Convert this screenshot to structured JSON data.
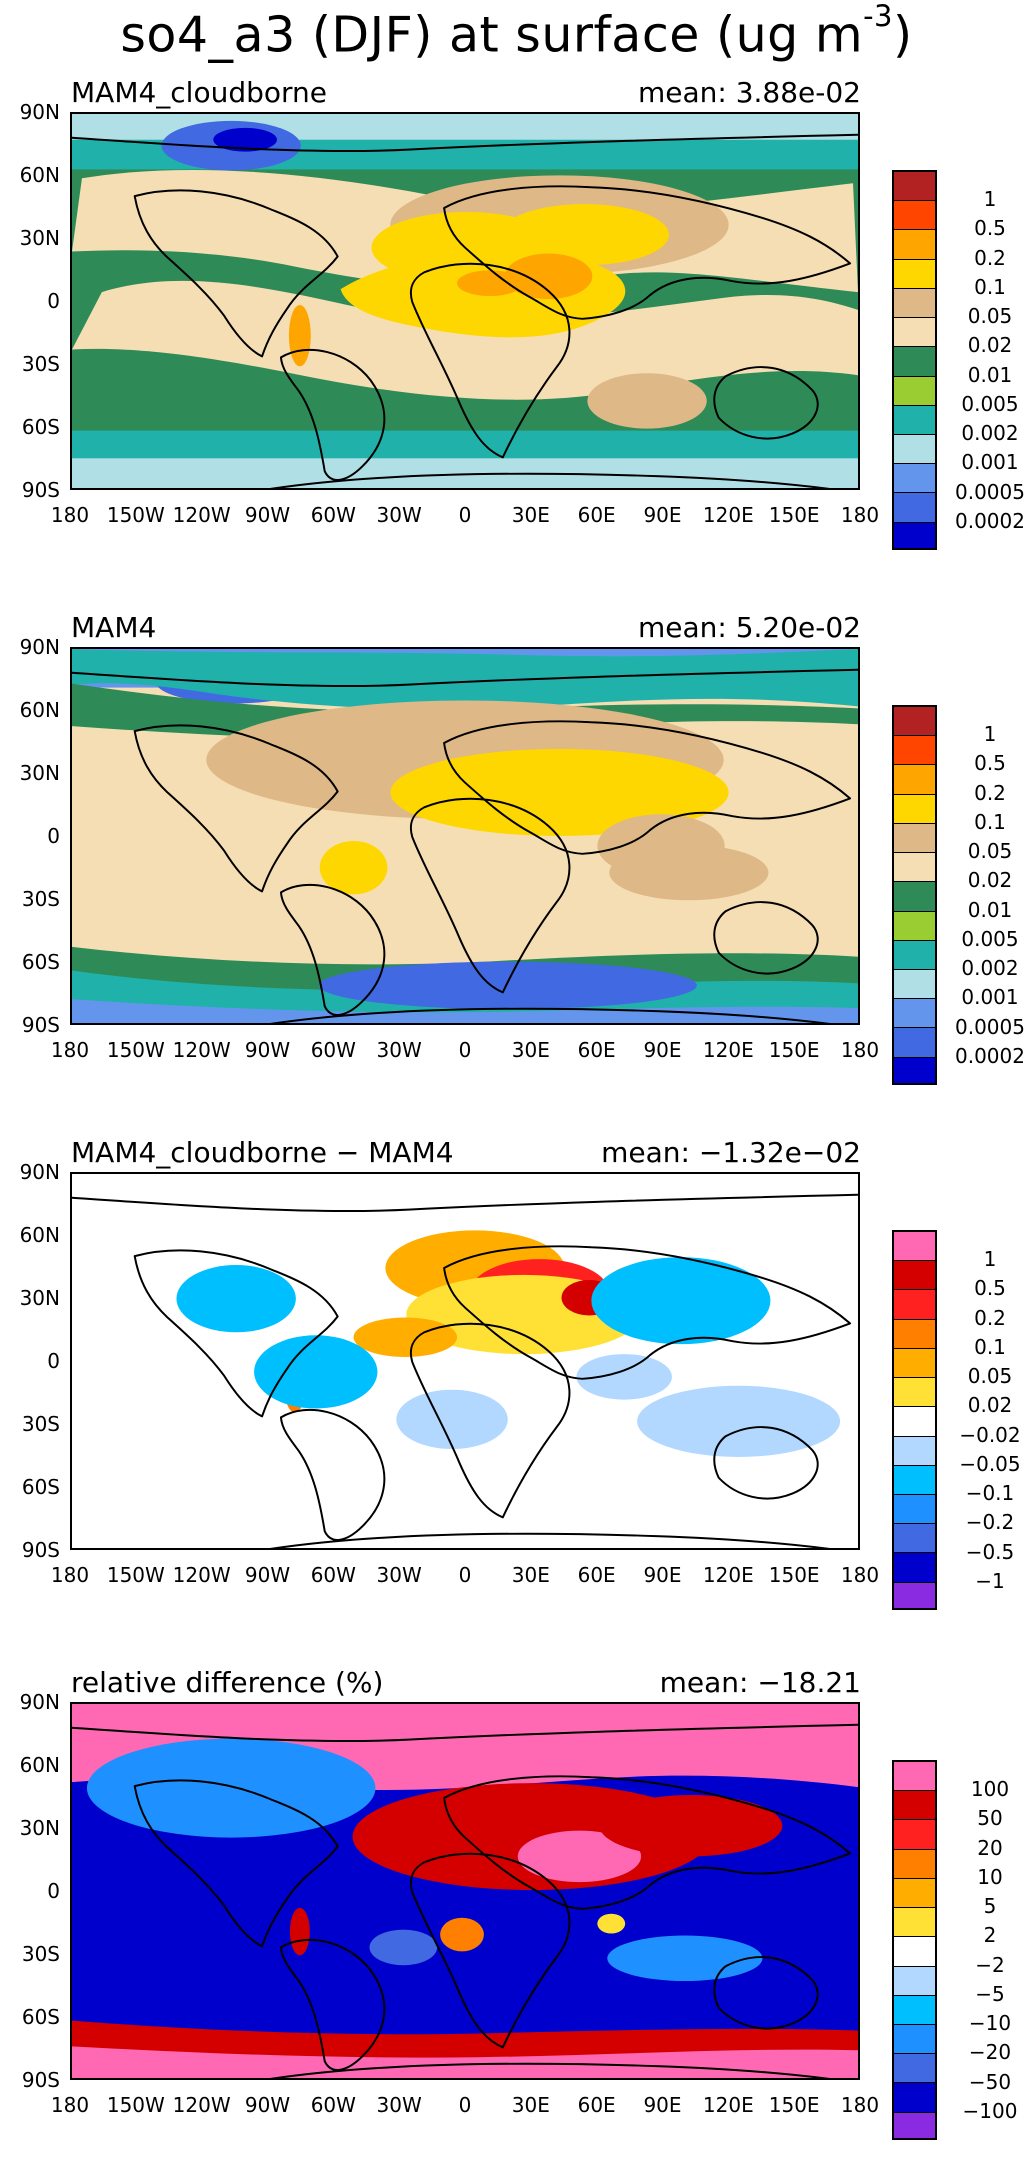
{
  "page": {
    "title_prefix": "so4_a3 (DJF) at surface (ug m",
    "title_superscript": "-3",
    "title_suffix": ")"
  },
  "chart_data": [
    {
      "type": "map",
      "title": "MAM4_cloudborne",
      "mean": "mean: 3.88e-02",
      "latitude_ticks": [
        "90N",
        "60N",
        "30N",
        "0",
        "30S",
        "60S",
        "90S"
      ],
      "longitude_ticks": [
        "180",
        "150W",
        "120W",
        "90W",
        "60W",
        "30W",
        "0",
        "30E",
        "60E",
        "90E",
        "120E",
        "150E",
        "180"
      ],
      "colorbar": [
        "1",
        "0.5",
        "0.2",
        "0.1",
        "0.05",
        "0.02",
        "0.01",
        "0.005",
        "0.002",
        "0.001",
        "0.0005",
        "0.0002"
      ],
      "colors": [
        "#b22222",
        "#ff4500",
        "#ffa500",
        "#ffd700",
        "#deb887",
        "#f5deb3",
        "#2e8b57",
        "#9acd32",
        "#20b2aa",
        "#b0e0e6",
        "#6495ed",
        "#4169e1",
        "#0000cd"
      ]
    },
    {
      "type": "map",
      "title": "MAM4",
      "mean": "mean: 5.20e-02",
      "latitude_ticks": [
        "90N",
        "60N",
        "30N",
        "0",
        "30S",
        "60S",
        "90S"
      ],
      "longitude_ticks": [
        "180",
        "150W",
        "120W",
        "90W",
        "60W",
        "30W",
        "0",
        "30E",
        "60E",
        "90E",
        "120E",
        "150E",
        "180"
      ],
      "colorbar": [
        "1",
        "0.5",
        "0.2",
        "0.1",
        "0.05",
        "0.02",
        "0.01",
        "0.005",
        "0.002",
        "0.001",
        "0.0005",
        "0.0002"
      ],
      "colors": [
        "#b22222",
        "#ff4500",
        "#ffa500",
        "#ffd700",
        "#deb887",
        "#f5deb3",
        "#2e8b57",
        "#9acd32",
        "#20b2aa",
        "#b0e0e6",
        "#6495ed",
        "#4169e1",
        "#0000cd"
      ]
    },
    {
      "type": "map",
      "title": "MAM4_cloudborne − MAM4",
      "mean": "mean: −1.32e−02",
      "latitude_ticks": [
        "90N",
        "60N",
        "30N",
        "0",
        "30S",
        "60S",
        "90S"
      ],
      "longitude_ticks": [
        "180",
        "150W",
        "120W",
        "90W",
        "60W",
        "30W",
        "0",
        "30E",
        "60E",
        "90E",
        "120E",
        "150E",
        "180"
      ],
      "colorbar": [
        "1",
        "0.5",
        "0.2",
        "0.1",
        "0.05",
        "0.02",
        "−0.02",
        "−0.05",
        "−0.1",
        "−0.2",
        "−0.5",
        "−1"
      ],
      "colors": [
        "#ff69b4",
        "#d40000",
        "#ff2020",
        "#ff7f00",
        "#ffae00",
        "#ffe135",
        "#ffffff",
        "#b2d8ff",
        "#00bfff",
        "#1e90ff",
        "#4169e1",
        "#0000cd",
        "#8a2be2"
      ]
    },
    {
      "type": "map",
      "title": "relative difference (%)",
      "mean": "mean: −18.21",
      "latitude_ticks": [
        "90N",
        "60N",
        "30N",
        "0",
        "30S",
        "60S",
        "90S"
      ],
      "longitude_ticks": [
        "180",
        "150W",
        "120W",
        "90W",
        "60W",
        "30W",
        "0",
        "30E",
        "60E",
        "90E",
        "120E",
        "150E",
        "180"
      ],
      "colorbar": [
        "100",
        "50",
        "20",
        "10",
        "5",
        "2",
        "−2",
        "−5",
        "−10",
        "−20",
        "−50",
        "−100"
      ],
      "colors": [
        "#ff69b4",
        "#d40000",
        "#ff2020",
        "#ff7f00",
        "#ffae00",
        "#ffe135",
        "#ffffff",
        "#b2d8ff",
        "#00bfff",
        "#1e90ff",
        "#4169e1",
        "#0000cd",
        "#8a2be2"
      ]
    }
  ]
}
